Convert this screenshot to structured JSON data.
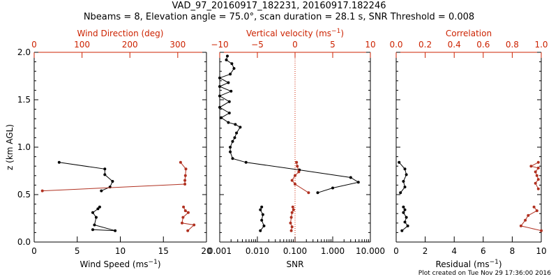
{
  "header": {
    "title_line1": "VAD_97_20160917_182231, 20160917.182246",
    "title_line2": "Nbeams = 8, Elevation angle = 75.0°, scan duration = 28.1 s, SNR Threshold = 0.008"
  },
  "footer": {
    "text": "Plot created on Tue Nov 29 17:36:00 2016"
  },
  "colors": {
    "axis": "#000000",
    "accent": "#cc2200",
    "series_black": "#000000",
    "series_red": "#b03020"
  },
  "chart_data": [
    {
      "type": "line",
      "panel": "wind",
      "ylabel": "z (km AGL)",
      "ylim": [
        0,
        2
      ],
      "yticks": [
        "0.0",
        "0.5",
        "1.0",
        "1.5",
        "2.0"
      ],
      "bottom_axis": {
        "label": "Wind Speed (ms",
        "label_sup": "−1",
        "label_end": ")",
        "lim": [
          0,
          20
        ],
        "ticks": [
          {
            "v": 0,
            "t": "0"
          },
          {
            "v": 5,
            "t": "5"
          },
          {
            "v": 10,
            "t": "10"
          },
          {
            "v": 15,
            "t": "15"
          },
          {
            "v": 20,
            "t": "20"
          }
        ]
      },
      "top_axis": {
        "label": "Wind Direction (deg)",
        "lim": [
          0,
          360
        ],
        "ticks": [
          {
            "v": 0,
            "t": "0"
          },
          {
            "v": 100,
            "t": "100"
          },
          {
            "v": 200,
            "t": "200"
          },
          {
            "v": 300,
            "t": "300"
          }
        ]
      },
      "series": [
        {
          "axis": "bottom",
          "color": "black",
          "segments": [
            [
              [
                6.8,
                0.13
              ],
              [
                9.4,
                0.12
              ],
              [
                7.0,
                0.18
              ],
              [
                7.2,
                0.26
              ],
              [
                6.8,
                0.31
              ],
              [
                7.4,
                0.35
              ],
              [
                7.6,
                0.37
              ]
            ],
            [
              [
                7.8,
                0.54
              ],
              [
                8.8,
                0.58
              ],
              [
                9.1,
                0.64
              ],
              [
                8.2,
                0.71
              ],
              [
                8.2,
                0.77
              ],
              [
                2.9,
                0.84
              ]
            ]
          ]
        },
        {
          "axis": "top",
          "color": "red",
          "segments": [
            [
              [
                321,
                0.12
              ],
              [
                334,
                0.18
              ],
              [
                309,
                0.2
              ],
              [
                311,
                0.26
              ],
              [
                322,
                0.31
              ],
              [
                316,
                0.33
              ],
              [
                312,
                0.37
              ]
            ],
            [
              [
                17,
                0.54
              ],
              [
                315,
                0.61
              ],
              [
                315,
                0.65
              ],
              [
                316,
                0.7
              ],
              [
                317,
                0.77
              ],
              [
                306,
                0.84
              ]
            ]
          ]
        }
      ]
    },
    {
      "type": "line",
      "panel": "snr",
      "ylim": [
        0,
        2
      ],
      "bottom_axis": {
        "label": "SNR",
        "scale": "log",
        "lim": [
          0.001,
          10
        ],
        "ticks": [
          {
            "v": 0.001,
            "t": "0.001"
          },
          {
            "v": 0.01,
            "t": "0.010"
          },
          {
            "v": 0.1,
            "t": "0.100"
          },
          {
            "v": 1,
            "t": "1.000"
          },
          {
            "v": 10,
            "t": "10.000"
          }
        ]
      },
      "top_axis": {
        "label": "Vertical velocity (ms",
        "label_sup": "−1",
        "label_end": ")",
        "lim": [
          -10,
          10
        ],
        "ticks": [
          {
            "v": -10,
            "t": "−10"
          },
          {
            "v": -5,
            "t": "−5"
          },
          {
            "v": 0,
            "t": "0"
          },
          {
            "v": 5,
            "t": "5"
          },
          {
            "v": 10,
            "t": "10"
          }
        ]
      },
      "reference_line": {
        "axis": "top",
        "value": 0,
        "style": "dotted",
        "color": "red"
      },
      "series": [
        {
          "axis": "bottom",
          "color": "black",
          "segments": [
            [
              [
                0.012,
                0.12
              ],
              [
                0.015,
                0.17
              ],
              [
                0.013,
                0.23
              ],
              [
                0.014,
                0.29
              ],
              [
                0.012,
                0.34
              ],
              [
                0.013,
                0.37
              ]
            ],
            [
              [
                0.4,
                0.52
              ],
              [
                1.0,
                0.57
              ],
              [
                4.8,
                0.63
              ],
              [
                3.0,
                0.68
              ],
              [
                0.13,
                0.76
              ],
              [
                0.005,
                0.84
              ],
              [
                0.0022,
                0.88
              ],
              [
                0.0019,
                0.95
              ],
              [
                0.0019,
                1.0
              ],
              [
                0.0022,
                1.06
              ],
              [
                0.0025,
                1.1
              ],
              [
                0.0028,
                1.15
              ],
              [
                0.0035,
                1.21
              ],
              [
                0.0026,
                1.24
              ],
              [
                0.0017,
                1.26
              ],
              [
                0.0011,
                1.31
              ],
              [
                0.0018,
                1.36
              ],
              [
                0.001,
                1.42
              ],
              [
                0.0018,
                1.48
              ],
              [
                0.001,
                1.54
              ],
              [
                0.002,
                1.59
              ],
              [
                0.001,
                1.64
              ],
              [
                0.0017,
                1.68
              ],
              [
                0.001,
                1.73
              ],
              [
                0.0019,
                1.77
              ],
              [
                0.0024,
                1.83
              ],
              [
                0.0021,
                1.88
              ],
              [
                0.0015,
                1.92
              ],
              [
                0.0016,
                1.96
              ]
            ]
          ]
        },
        {
          "axis": "top",
          "color": "red",
          "segments": [
            [
              [
                -0.5,
                0.12
              ],
              [
                -0.4,
                0.16
              ],
              [
                -0.6,
                0.2
              ],
              [
                -0.5,
                0.26
              ],
              [
                -0.4,
                0.31
              ],
              [
                -0.2,
                0.34
              ],
              [
                -0.3,
                0.37
              ]
            ],
            [
              [
                1.8,
                0.52
              ],
              [
                0.0,
                0.61
              ],
              [
                -0.4,
                0.65
              ],
              [
                0.0,
                0.7
              ],
              [
                0.5,
                0.74
              ],
              [
                0.3,
                0.8
              ],
              [
                0.2,
                0.84
              ]
            ]
          ]
        }
      ]
    },
    {
      "type": "line",
      "panel": "residual",
      "ylim": [
        0,
        2
      ],
      "bottom_axis": {
        "label": "Residual (ms",
        "label_sup": "−1",
        "label_end": ")",
        "lim": [
          0,
          10
        ],
        "ticks": [
          {
            "v": 0,
            "t": "0"
          },
          {
            "v": 2,
            "t": "2"
          },
          {
            "v": 4,
            "t": "4"
          },
          {
            "v": 6,
            "t": "6"
          },
          {
            "v": 8,
            "t": "8"
          },
          {
            "v": 10,
            "t": "10"
          }
        ]
      },
      "top_axis": {
        "label": "Correlation",
        "lim": [
          0,
          1
        ],
        "ticks": [
          {
            "v": 0,
            "t": "0.0"
          },
          {
            "v": 0.2,
            "t": "0.2"
          },
          {
            "v": 0.4,
            "t": "0.4"
          },
          {
            "v": 0.6,
            "t": "0.6"
          },
          {
            "v": 0.8,
            "t": "0.8"
          },
          {
            "v": 1.0,
            "t": "1.0"
          }
        ]
      },
      "series": [
        {
          "axis": "bottom",
          "color": "black",
          "segments": [
            [
              [
                0.4,
                0.12
              ],
              [
                0.8,
                0.17
              ],
              [
                0.6,
                0.21
              ],
              [
                0.7,
                0.26
              ],
              [
                0.5,
                0.31
              ],
              [
                0.6,
                0.34
              ],
              [
                0.5,
                0.37
              ]
            ],
            [
              [
                0.3,
                0.52
              ],
              [
                0.6,
                0.58
              ],
              [
                0.5,
                0.64
              ],
              [
                0.7,
                0.71
              ],
              [
                0.6,
                0.77
              ],
              [
                0.2,
                0.84
              ]
            ]
          ]
        },
        {
          "axis": "top",
          "color": "red",
          "segments": [
            [
              [
                1.0,
                0.12
              ],
              [
                0.86,
                0.17
              ],
              [
                0.89,
                0.23
              ],
              [
                0.91,
                0.28
              ],
              [
                0.97,
                0.33
              ],
              [
                0.95,
                0.37
              ]
            ],
            [
              [
                0.98,
                0.56
              ],
              [
                0.96,
                0.62
              ],
              [
                0.98,
                0.66
              ],
              [
                0.97,
                0.7
              ],
              [
                0.96,
                0.74
              ],
              [
                0.98,
                0.78
              ],
              [
                0.93,
                0.8
              ],
              [
                0.98,
                0.84
              ]
            ]
          ]
        }
      ]
    }
  ]
}
